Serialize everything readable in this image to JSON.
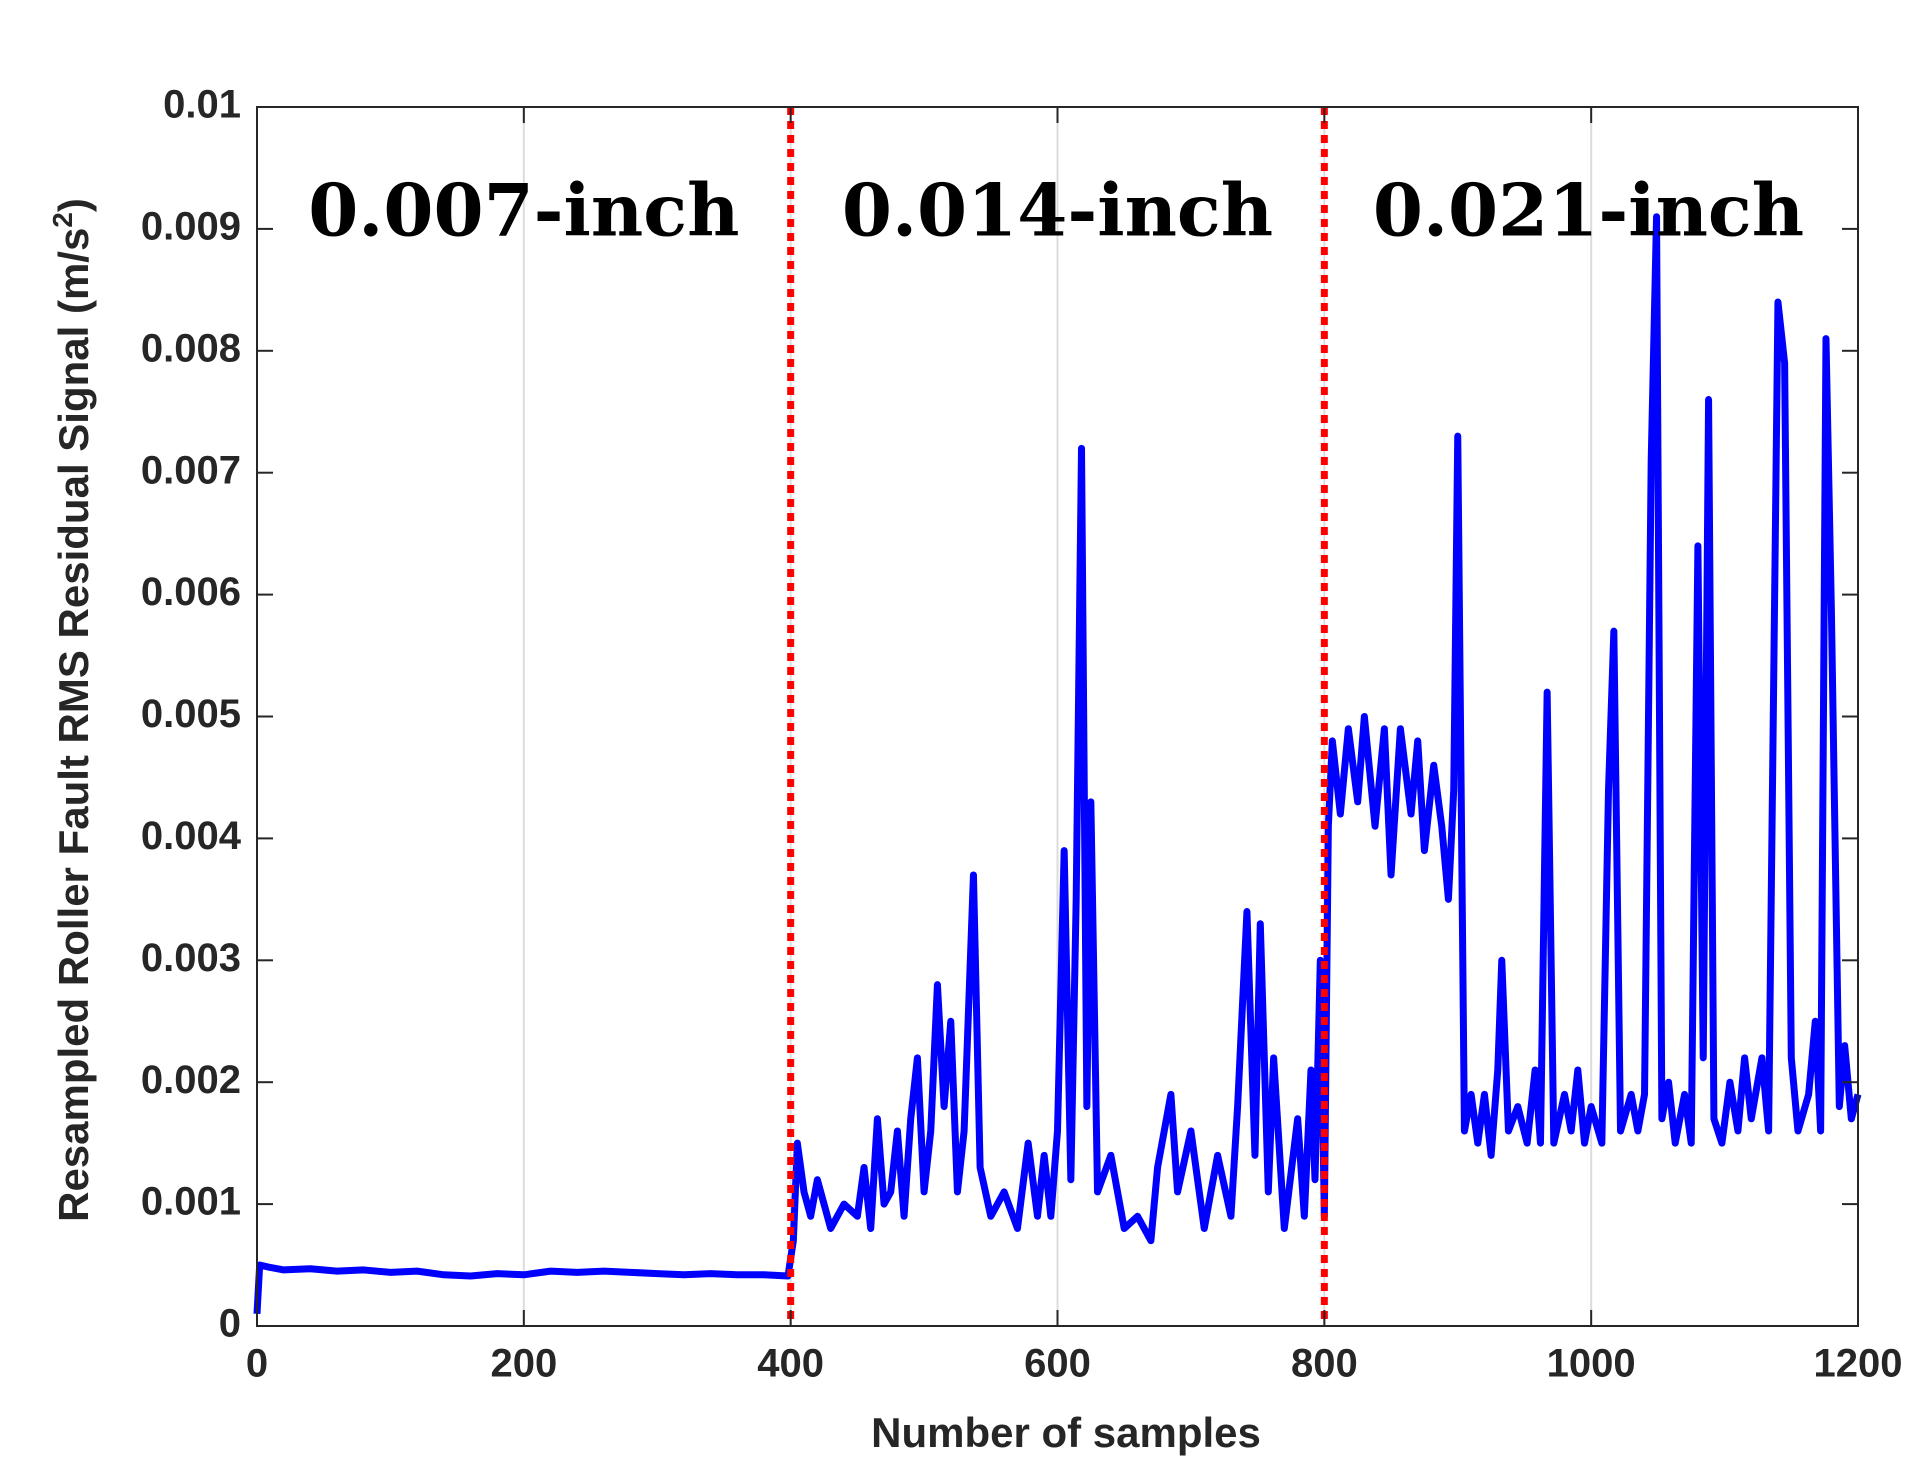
{
  "chart_data": {
    "type": "line",
    "xlabel": "Number of samples",
    "ylabel": "Resampled Roller Fault RMS Residual Signal (m/s",
    "ylabel_sup": "2",
    "ylabel_end": ")",
    "xlim": [
      0,
      1200
    ],
    "xticks": [
      0,
      200,
      400,
      600,
      800,
      1000,
      1200
    ],
    "ylim": [
      0,
      0.01
    ],
    "yticks": [
      0,
      0.001,
      0.002,
      0.003,
      0.004,
      0.005,
      0.006,
      0.007,
      0.008,
      0.009,
      0.01
    ],
    "grid": "x",
    "vlines": {
      "color": "#ff0000",
      "x": [
        400,
        800
      ]
    },
    "annotations": [
      {
        "text": "0.007-inch",
        "x": 200,
        "y": 0.0091
      },
      {
        "text": "0.014-inch",
        "x": 600,
        "y": 0.0091
      },
      {
        "text": "0.021-inch",
        "x": 998,
        "y": 0.0091
      }
    ],
    "x": [
      0,
      2,
      10,
      20,
      40,
      60,
      80,
      100,
      120,
      140,
      160,
      180,
      200,
      220,
      240,
      260,
      280,
      300,
      320,
      340,
      360,
      380,
      398,
      402,
      405,
      410,
      415,
      420,
      430,
      440,
      450,
      455,
      460,
      465,
      470,
      475,
      480,
      485,
      490,
      495,
      500,
      505,
      510,
      515,
      520,
      525,
      530,
      537,
      542,
      550,
      560,
      570,
      578,
      585,
      590,
      595,
      600,
      605,
      610,
      614,
      618,
      622,
      625,
      630,
      640,
      650,
      660,
      670,
      675,
      685,
      690,
      700,
      710,
      720,
      730,
      735,
      742,
      748,
      752,
      758,
      762,
      770,
      780,
      785,
      790,
      793,
      797,
      800,
      803,
      806,
      812,
      818,
      825,
      830,
      838,
      845,
      850,
      857,
      865,
      870,
      875,
      882,
      888,
      893,
      897,
      900,
      905,
      910,
      915,
      920,
      925,
      930,
      933,
      938,
      945,
      952,
      958,
      962,
      967,
      972,
      980,
      985,
      990,
      995,
      1000,
      1008,
      1013,
      1017,
      1022,
      1030,
      1035,
      1040,
      1045,
      1049,
      1053,
      1058,
      1063,
      1070,
      1075,
      1080,
      1084,
      1088,
      1092,
      1098,
      1104,
      1110,
      1115,
      1120,
      1128,
      1133,
      1140,
      1145,
      1150,
      1155,
      1163,
      1168,
      1172,
      1176,
      1180,
      1186,
      1190,
      1195,
      1200
    ],
    "series": [
      {
        "color": "#0000ff",
        "values": [
          0.0001,
          0.0005,
          0.00048,
          0.00046,
          0.00047,
          0.00045,
          0.00046,
          0.00044,
          0.00045,
          0.00042,
          0.00041,
          0.00043,
          0.00042,
          0.00045,
          0.00044,
          0.00045,
          0.00044,
          0.00043,
          0.00042,
          0.00043,
          0.00042,
          0.00042,
          0.00041,
          0.0007,
          0.0015,
          0.0011,
          0.0009,
          0.0012,
          0.0008,
          0.001,
          0.0009,
          0.0013,
          0.0008,
          0.0017,
          0.001,
          0.0011,
          0.0016,
          0.0009,
          0.0017,
          0.0022,
          0.0011,
          0.0016,
          0.0028,
          0.0018,
          0.0025,
          0.0011,
          0.0016,
          0.0037,
          0.0013,
          0.0009,
          0.0011,
          0.0008,
          0.0015,
          0.0009,
          0.0014,
          0.0009,
          0.0016,
          0.0039,
          0.0012,
          0.0035,
          0.0072,
          0.0018,
          0.0043,
          0.0011,
          0.0014,
          0.0008,
          0.0009,
          0.0007,
          0.0013,
          0.0019,
          0.0011,
          0.0016,
          0.0008,
          0.0014,
          0.0009,
          0.0018,
          0.0034,
          0.0014,
          0.0033,
          0.0011,
          0.0022,
          0.0008,
          0.0017,
          0.0009,
          0.0021,
          0.0012,
          0.003,
          0.0009,
          0.0041,
          0.0048,
          0.0042,
          0.0049,
          0.0043,
          0.005,
          0.0041,
          0.0049,
          0.0037,
          0.0049,
          0.0042,
          0.0048,
          0.0039,
          0.0046,
          0.0041,
          0.0035,
          0.0044,
          0.0073,
          0.0016,
          0.0019,
          0.0015,
          0.0019,
          0.0014,
          0.0021,
          0.003,
          0.0016,
          0.0018,
          0.0015,
          0.0021,
          0.0015,
          0.0052,
          0.0015,
          0.0019,
          0.0016,
          0.0021,
          0.0015,
          0.0018,
          0.0015,
          0.0044,
          0.0057,
          0.0016,
          0.0019,
          0.0016,
          0.0019,
          0.0071,
          0.0091,
          0.0017,
          0.002,
          0.0015,
          0.0019,
          0.0015,
          0.0064,
          0.0022,
          0.0076,
          0.0017,
          0.0015,
          0.002,
          0.0016,
          0.0022,
          0.0017,
          0.0022,
          0.0016,
          0.0084,
          0.0079,
          0.0022,
          0.0016,
          0.0019,
          0.0025,
          0.0016,
          0.0081,
          0.0059,
          0.0018,
          0.0023,
          0.0017,
          0.0019
        ]
      }
    ]
  }
}
